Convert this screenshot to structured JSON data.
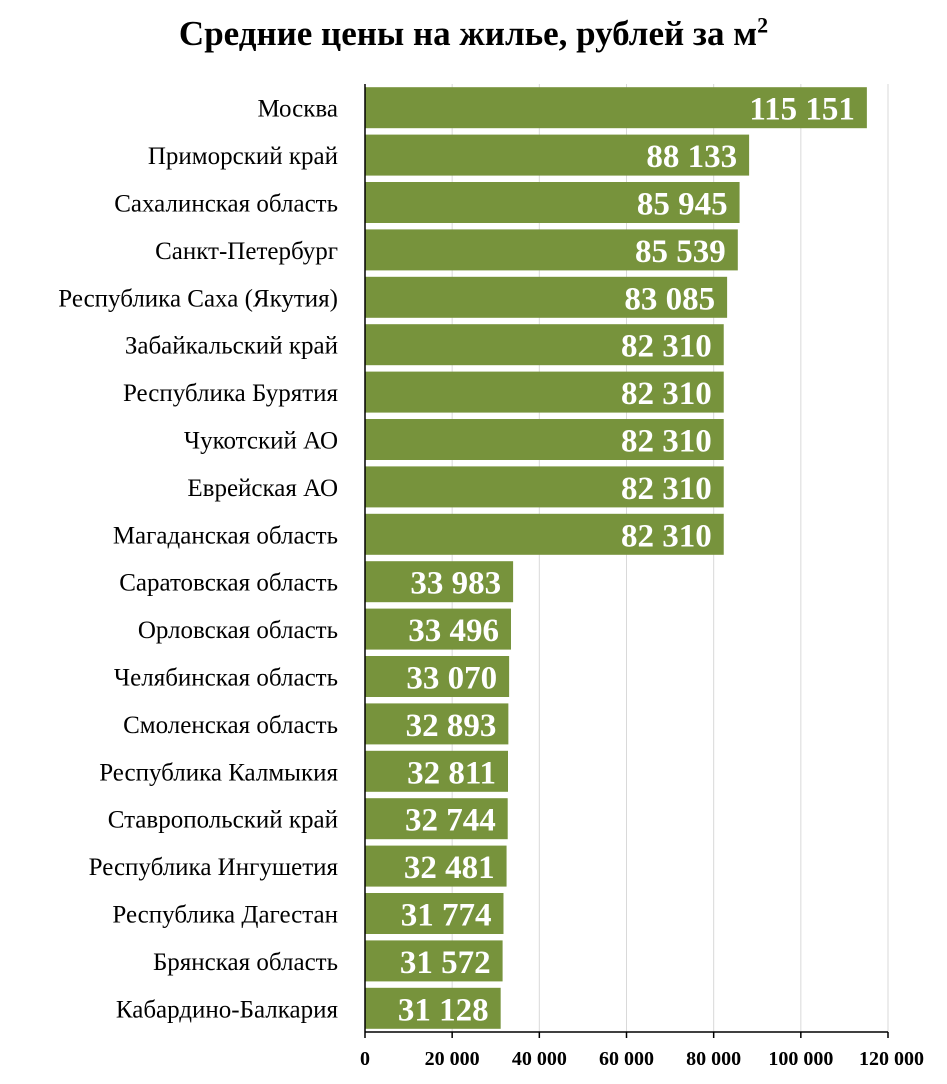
{
  "chart_data": {
    "type": "bar",
    "orientation": "horizontal",
    "title": "Средние цены на жилье, рублей за м",
    "title_superscript": "2",
    "categories": [
      "Москва",
      "Приморский край",
      "Сахалинская область",
      "Санкт-Петербург",
      "Республика Саха (Якутия)",
      "Забайкальский край",
      "Республика Бурятия",
      "Чукотский АО",
      "Еврейская АО",
      "Магаданская область",
      "Саратовская область",
      "Орловская область",
      "Челябинская область",
      "Смоленская область",
      "Республика Калмыкия",
      "Ставропольский край",
      "Республика Ингушетия",
      "Республика Дагестан",
      "Брянская область",
      "Кабардино-Балкария"
    ],
    "values": [
      115151,
      88133,
      85945,
      85539,
      83085,
      82310,
      82310,
      82310,
      82310,
      82310,
      33983,
      33496,
      33070,
      32893,
      32811,
      32744,
      32481,
      31774,
      31572,
      31128
    ],
    "value_labels": [
      "115 151",
      "88 133",
      "85 945",
      "85 539",
      "83 085",
      "82 310",
      "82 310",
      "82 310",
      "82 310",
      "82 310",
      "33 983",
      "33 496",
      "33 070",
      "32 893",
      "32 811",
      "32 744",
      "32 481",
      "31 774",
      "31 572",
      "31 128"
    ],
    "xlim": [
      0,
      120000
    ],
    "xticks": [
      0,
      20000,
      40000,
      60000,
      80000,
      100000,
      120000
    ],
    "xtick_labels": [
      "0",
      "20 000",
      "40 000",
      "60 000",
      "80 000",
      "100 000",
      "120 000"
    ],
    "xlabel": "",
    "ylabel": "",
    "grid": "vertical",
    "bar_color": "#77933c",
    "grid_color": "#d9d9d9",
    "label_color": "#ffffff"
  }
}
